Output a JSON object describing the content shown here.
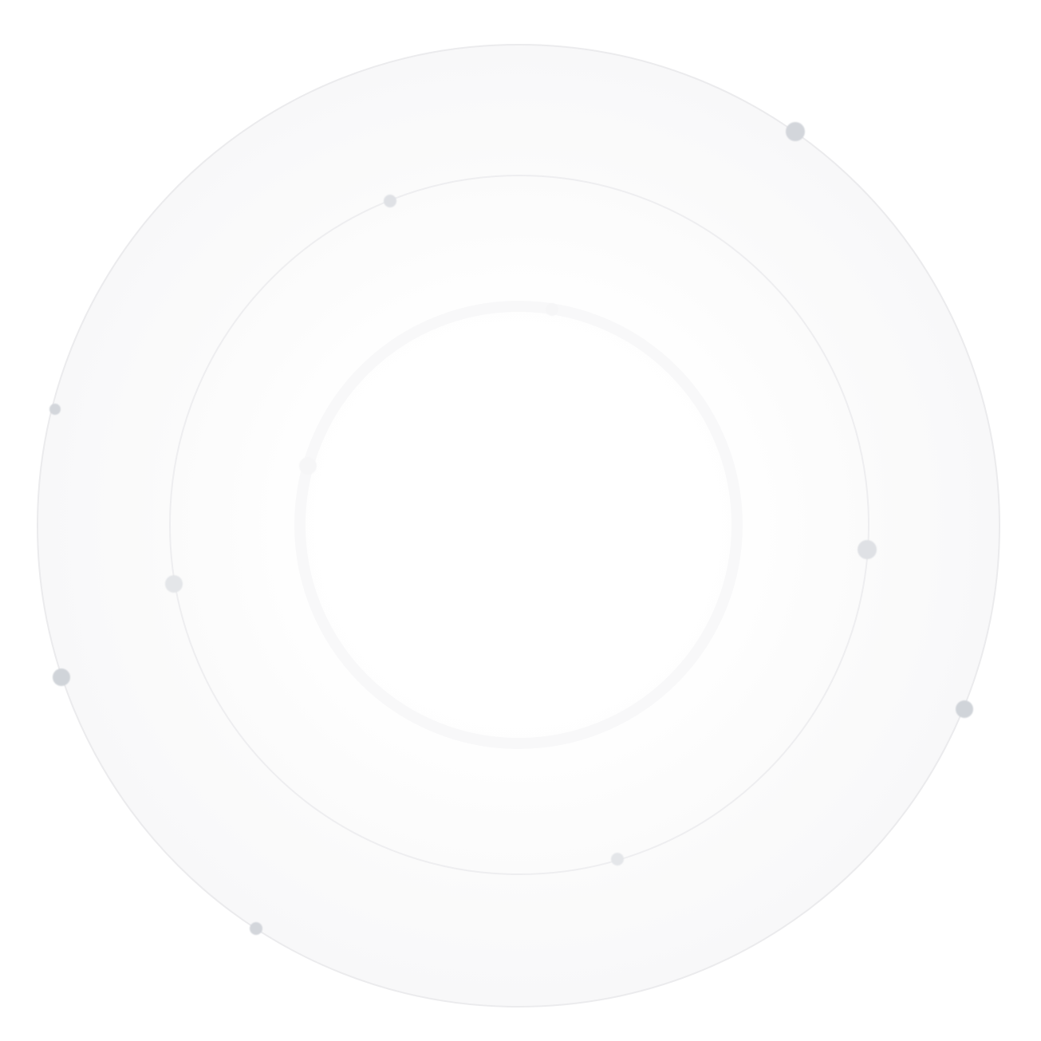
{
  "colors": {
    "background": "#ffffff",
    "ring_stroke": "#ebebed",
    "ring_fill": "#fafafa",
    "dot": "#cfd3d9",
    "dot_light": "#e1e3e7",
    "dot_faint": "#f4f5f6"
  }
}
